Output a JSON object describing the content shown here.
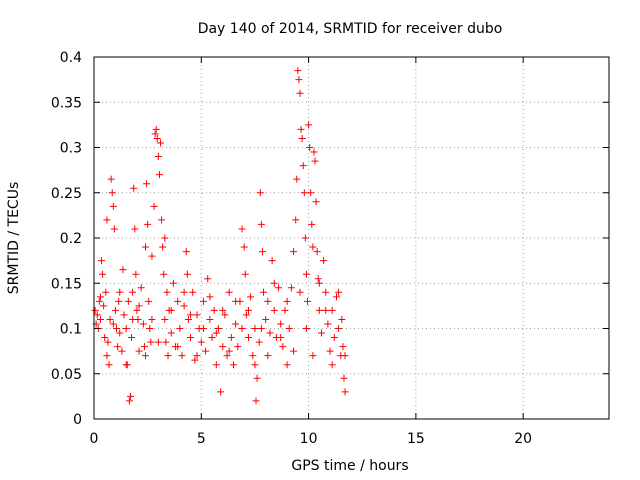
{
  "chart_data": {
    "type": "scatter",
    "title": "Day 140 of 2014, SRMTID for receiver dubo",
    "xlabel": "GPS time / hours",
    "ylabel": "SRMTID / TECUs",
    "xlim": [
      0,
      24
    ],
    "ylim": [
      0,
      0.4
    ],
    "xticks": [
      0,
      5,
      10,
      15,
      20
    ],
    "xtick_labels": [
      "0",
      "5",
      "10",
      "15",
      "20"
    ],
    "yticks": [
      0,
      0.05,
      0.1,
      0.15,
      0.2,
      0.25,
      0.3,
      0.35,
      0.4
    ],
    "ytick_labels": [
      "0",
      "0.05",
      "0.1",
      "0.15",
      "0.2",
      "0.25",
      "0.3",
      "0.35",
      "0.4"
    ],
    "grid": true,
    "marker": "+",
    "color": "#ff0000",
    "series": [
      {
        "name": "SRMTID",
        "points": [
          [
            0.05,
            0.12
          ],
          [
            0.1,
            0.105
          ],
          [
            0.15,
            0.115
          ],
          [
            0.2,
            0.1
          ],
          [
            0.25,
            0.13
          ],
          [
            0.3,
            0.11
          ],
          [
            0.35,
            0.175
          ],
          [
            0.4,
            0.16
          ],
          [
            0.45,
            0.125
          ],
          [
            0.5,
            0.09
          ],
          [
            0.55,
            0.14
          ],
          [
            0.6,
            0.22
          ],
          [
            0.65,
            0.085
          ],
          [
            0.7,
            0.06
          ],
          [
            0.75,
            0.11
          ],
          [
            0.8,
            0.265
          ],
          [
            0.85,
            0.25
          ],
          [
            0.9,
            0.235
          ],
          [
            0.95,
            0.21
          ],
          [
            1.0,
            0.12
          ],
          [
            1.05,
            0.1
          ],
          [
            1.1,
            0.08
          ],
          [
            1.15,
            0.13
          ],
          [
            1.2,
            0.095
          ],
          [
            1.3,
            0.075
          ],
          [
            1.35,
            0.165
          ],
          [
            1.4,
            0.115
          ],
          [
            1.5,
            0.1
          ],
          [
            1.55,
            0.06
          ],
          [
            1.6,
            0.13
          ],
          [
            1.65,
            0.02
          ],
          [
            1.7,
            0.025
          ],
          [
            1.75,
            0.09
          ],
          [
            1.8,
            0.14
          ],
          [
            1.85,
            0.255
          ],
          [
            1.9,
            0.21
          ],
          [
            1.95,
            0.16
          ],
          [
            2.0,
            0.12
          ],
          [
            2.05,
            0.11
          ],
          [
            2.1,
            0.075
          ],
          [
            2.2,
            0.145
          ],
          [
            2.3,
            0.105
          ],
          [
            2.35,
            0.08
          ],
          [
            2.4,
            0.19
          ],
          [
            2.45,
            0.26
          ],
          [
            2.5,
            0.215
          ],
          [
            2.55,
            0.13
          ],
          [
            2.6,
            0.1
          ],
          [
            2.65,
            0.085
          ],
          [
            2.7,
            0.18
          ],
          [
            2.8,
            0.235
          ],
          [
            2.85,
            0.315
          ],
          [
            2.9,
            0.32
          ],
          [
            2.95,
            0.31
          ],
          [
            3.0,
            0.29
          ],
          [
            3.05,
            0.27
          ],
          [
            3.1,
            0.305
          ],
          [
            3.15,
            0.22
          ],
          [
            3.2,
            0.19
          ],
          [
            3.25,
            0.16
          ],
          [
            3.3,
            0.11
          ],
          [
            3.35,
            0.085
          ],
          [
            3.4,
            0.14
          ],
          [
            3.45,
            0.07
          ],
          [
            3.5,
            0.12
          ],
          [
            3.6,
            0.095
          ],
          [
            3.7,
            0.15
          ],
          [
            3.8,
            0.08
          ],
          [
            3.9,
            0.13
          ],
          [
            4.0,
            0.1
          ],
          [
            4.1,
            0.07
          ],
          [
            4.2,
            0.125
          ],
          [
            4.3,
            0.185
          ],
          [
            4.35,
            0.16
          ],
          [
            4.4,
            0.11
          ],
          [
            4.5,
            0.09
          ],
          [
            4.6,
            0.14
          ],
          [
            4.7,
            0.065
          ],
          [
            4.8,
            0.115
          ],
          [
            4.9,
            0.1
          ],
          [
            5.0,
            0.085
          ],
          [
            5.1,
            0.13
          ],
          [
            5.2,
            0.075
          ],
          [
            5.3,
            0.155
          ],
          [
            5.4,
            0.11
          ],
          [
            5.5,
            0.09
          ],
          [
            5.6,
            0.12
          ],
          [
            5.7,
            0.06
          ],
          [
            5.8,
            0.1
          ],
          [
            5.9,
            0.03
          ],
          [
            6.0,
            0.08
          ],
          [
            6.1,
            0.115
          ],
          [
            6.2,
            0.07
          ],
          [
            6.3,
            0.14
          ],
          [
            6.4,
            0.09
          ],
          [
            6.5,
            0.06
          ],
          [
            6.6,
            0.105
          ],
          [
            6.7,
            0.08
          ],
          [
            6.8,
            0.13
          ],
          [
            6.9,
            0.21
          ],
          [
            7.0,
            0.19
          ],
          [
            7.05,
            0.16
          ],
          [
            7.1,
            0.115
          ],
          [
            7.2,
            0.09
          ],
          [
            7.3,
            0.135
          ],
          [
            7.4,
            0.07
          ],
          [
            7.5,
            0.1
          ],
          [
            7.55,
            0.02
          ],
          [
            7.6,
            0.045
          ],
          [
            7.7,
            0.085
          ],
          [
            7.75,
            0.25
          ],
          [
            7.8,
            0.215
          ],
          [
            7.85,
            0.185
          ],
          [
            7.9,
            0.14
          ],
          [
            8.0,
            0.11
          ],
          [
            8.1,
            0.13
          ],
          [
            8.2,
            0.095
          ],
          [
            8.3,
            0.175
          ],
          [
            8.4,
            0.12
          ],
          [
            8.5,
            0.09
          ],
          [
            8.6,
            0.145
          ],
          [
            8.7,
            0.105
          ],
          [
            8.8,
            0.08
          ],
          [
            8.9,
            0.12
          ],
          [
            9.0,
            0.06
          ],
          [
            9.1,
            0.1
          ],
          [
            9.2,
            0.145
          ],
          [
            9.3,
            0.185
          ],
          [
            9.4,
            0.22
          ],
          [
            9.45,
            0.265
          ],
          [
            9.5,
            0.385
          ],
          [
            9.55,
            0.375
          ],
          [
            9.6,
            0.36
          ],
          [
            9.65,
            0.32
          ],
          [
            9.7,
            0.31
          ],
          [
            9.75,
            0.28
          ],
          [
            9.8,
            0.25
          ],
          [
            9.85,
            0.2
          ],
          [
            9.9,
            0.16
          ],
          [
            9.95,
            0.13
          ],
          [
            10.0,
            0.325
          ],
          [
            10.05,
            0.3
          ],
          [
            10.1,
            0.25
          ],
          [
            10.15,
            0.215
          ],
          [
            10.2,
            0.19
          ],
          [
            10.25,
            0.295
          ],
          [
            10.3,
            0.285
          ],
          [
            10.35,
            0.24
          ],
          [
            10.4,
            0.185
          ],
          [
            10.45,
            0.155
          ],
          [
            10.5,
            0.12
          ],
          [
            10.6,
            0.095
          ],
          [
            10.7,
            0.175
          ],
          [
            10.8,
            0.14
          ],
          [
            10.9,
            0.105
          ],
          [
            11.0,
            0.075
          ],
          [
            11.1,
            0.12
          ],
          [
            11.2,
            0.09
          ],
          [
            11.3,
            0.135
          ],
          [
            11.4,
            0.1
          ],
          [
            11.5,
            0.07
          ],
          [
            11.55,
            0.11
          ],
          [
            11.6,
            0.08
          ],
          [
            11.65,
            0.045
          ],
          [
            11.7,
            0.03
          ],
          [
            0.3,
            0.135
          ],
          [
            0.6,
            0.07
          ],
          [
            0.9,
            0.105
          ],
          [
            1.2,
            0.14
          ],
          [
            1.5,
            0.06
          ],
          [
            1.8,
            0.11
          ],
          [
            2.1,
            0.125
          ],
          [
            2.4,
            0.07
          ],
          [
            2.7,
            0.11
          ],
          [
            3.0,
            0.085
          ],
          [
            3.3,
            0.2
          ],
          [
            3.6,
            0.12
          ],
          [
            3.9,
            0.08
          ],
          [
            4.2,
            0.14
          ],
          [
            4.5,
            0.115
          ],
          [
            4.8,
            0.07
          ],
          [
            5.1,
            0.1
          ],
          [
            5.4,
            0.135
          ],
          [
            5.7,
            0.095
          ],
          [
            6.0,
            0.12
          ],
          [
            6.3,
            0.075
          ],
          [
            6.6,
            0.13
          ],
          [
            6.9,
            0.1
          ],
          [
            7.2,
            0.12
          ],
          [
            7.5,
            0.06
          ],
          [
            7.8,
            0.1
          ],
          [
            8.1,
            0.07
          ],
          [
            8.4,
            0.15
          ],
          [
            8.7,
            0.09
          ],
          [
            9.0,
            0.13
          ],
          [
            9.3,
            0.075
          ],
          [
            9.6,
            0.14
          ],
          [
            9.9,
            0.1
          ],
          [
            10.2,
            0.07
          ],
          [
            10.5,
            0.15
          ],
          [
            10.8,
            0.12
          ],
          [
            11.1,
            0.06
          ],
          [
            11.4,
            0.14
          ],
          [
            11.7,
            0.07
          ]
        ]
      }
    ]
  }
}
